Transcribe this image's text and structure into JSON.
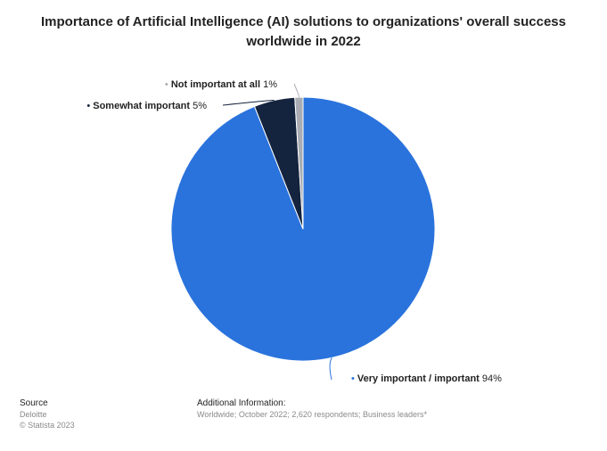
{
  "chart_data": {
    "type": "pie",
    "title": "Importance of Artificial Intelligence (AI) solutions to organizations' overall success worldwide in 2022",
    "slices": [
      {
        "label": "Very important / important",
        "value": 94,
        "value_label": "94%",
        "color": "#2a73dd"
      },
      {
        "label": "Somewhat important",
        "value": 5,
        "value_label": "5%",
        "color": "#14233e"
      },
      {
        "label": "Not important at all",
        "value": 1,
        "value_label": "1%",
        "color": "#a9adb3"
      }
    ],
    "direction": "clockwise from top"
  },
  "footer": {
    "source_label": "Source",
    "source_name": "Deloitte",
    "copyright": "© Statista 2023",
    "additional_label": "Additional Information:",
    "additional_text": "Worldwide; October 2022; 2,620 respondents; Business leaders*"
  }
}
